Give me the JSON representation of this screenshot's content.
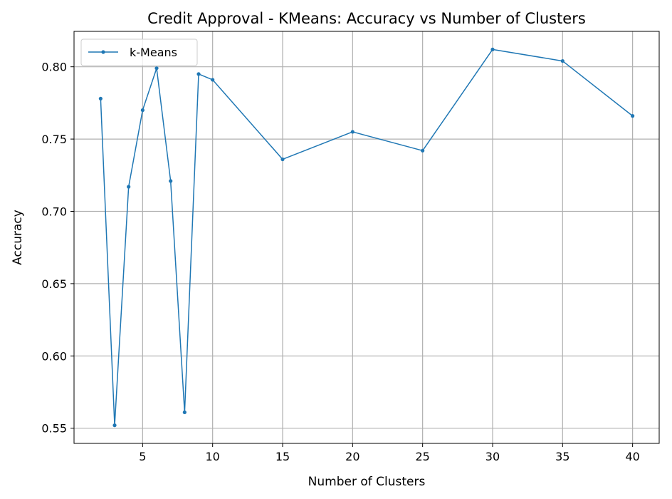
{
  "chart_data": {
    "type": "line",
    "title": "Credit Approval - KMeans: Accuracy vs Number of Clusters",
    "xlabel": "Number of Clusters",
    "ylabel": "Accuracy",
    "xlim": [
      0.1,
      41.9
    ],
    "ylim": [
      0.5395,
      0.8245
    ],
    "xticks": [
      5,
      10,
      15,
      20,
      25,
      30,
      35,
      40
    ],
    "yticks": [
      0.55,
      0.6,
      0.65,
      0.7,
      0.75,
      0.8
    ],
    "grid": true,
    "legend_position": "top-left",
    "series": [
      {
        "name": "k-Means",
        "color": "#1f77b4",
        "x": [
          2,
          3,
          4,
          5,
          6,
          7,
          8,
          9,
          10,
          15,
          20,
          25,
          30,
          35,
          40
        ],
        "y": [
          0.778,
          0.552,
          0.717,
          0.77,
          0.799,
          0.721,
          0.561,
          0.795,
          0.791,
          0.736,
          0.755,
          0.742,
          0.812,
          0.804,
          0.766
        ]
      }
    ]
  }
}
